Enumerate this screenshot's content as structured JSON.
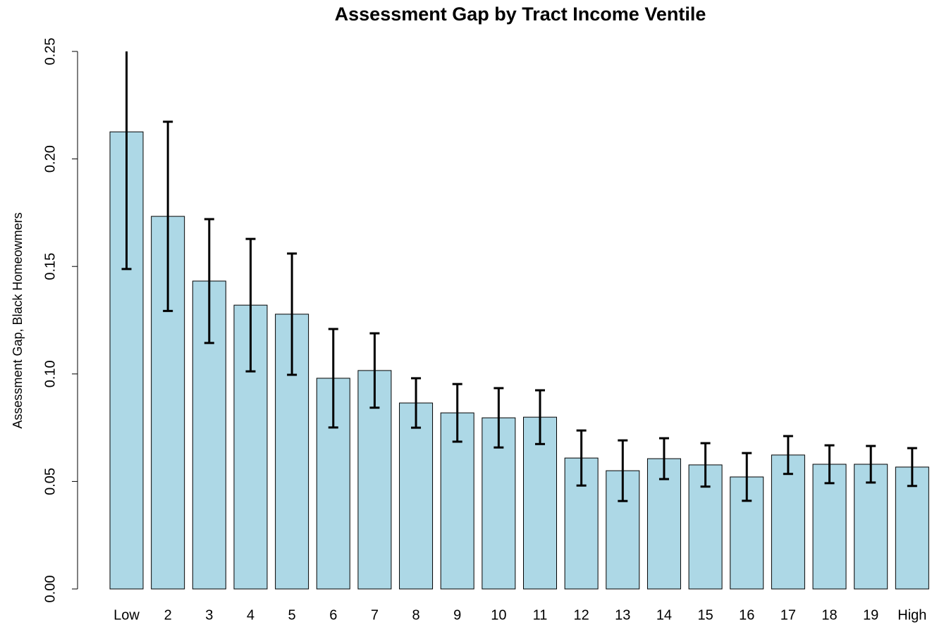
{
  "chart_data": {
    "type": "bar",
    "title": "Assessment Gap by Tract Income Ventile",
    "y_label": "Assessment Gap, Black Homeowmers",
    "categories": [
      "Low",
      "2",
      "3",
      "4",
      "5",
      "6",
      "7",
      "8",
      "9",
      "10",
      "11",
      "12",
      "13",
      "14",
      "15",
      "16",
      "17",
      "18",
      "19",
      "High"
    ],
    "values": [
      0.2126,
      0.1733,
      0.1432,
      0.132,
      0.1278,
      0.098,
      0.1016,
      0.0865,
      0.0819,
      0.0796,
      0.0799,
      0.0609,
      0.055,
      0.0606,
      0.0577,
      0.0521,
      0.0623,
      0.058,
      0.058,
      0.0567
    ],
    "errors": [
      0.0638,
      0.044,
      0.0288,
      0.0308,
      0.0282,
      0.0229,
      0.0173,
      0.0115,
      0.0134,
      0.0138,
      0.0125,
      0.0128,
      0.0141,
      0.0095,
      0.0101,
      0.0111,
      0.0088,
      0.0088,
      0.0085,
      0.0088
    ],
    "color": "#add8e6",
    "ylim": [
      0,
      0.25
    ],
    "yticks": [
      {
        "value": 0,
        "label": "0.00"
      },
      {
        "value": 0.05,
        "label": "0.05"
      },
      {
        "value": 0.1,
        "label": "0.10"
      },
      {
        "value": 0.15,
        "label": "0.15"
      },
      {
        "value": 0.2,
        "label": "0.20"
      },
      {
        "value": 0.25,
        "label": "0.25"
      }
    ]
  }
}
